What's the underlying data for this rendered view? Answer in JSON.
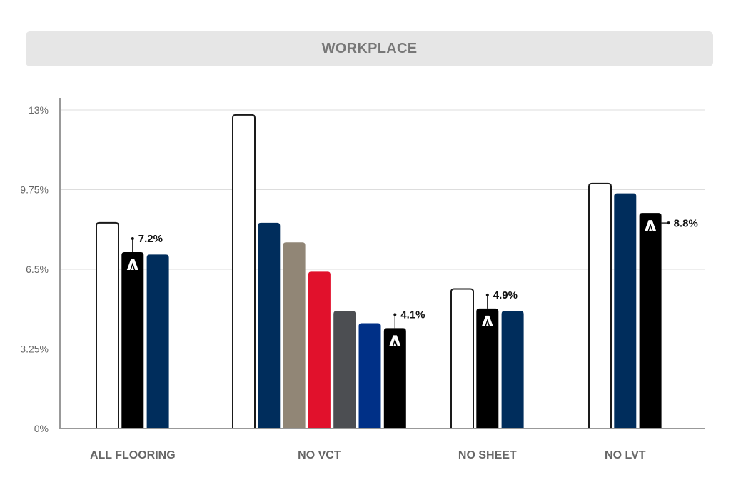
{
  "title": "WORKPLACE",
  "chart_data": {
    "type": "bar",
    "title": "WORKPLACE",
    "y_ticks": [
      "0%",
      "3.25%",
      "6.5%",
      "9.75%",
      "13%"
    ],
    "ylim": [
      0,
      13
    ],
    "grid": true,
    "groups": [
      {
        "category": "ALL FLOORING",
        "bars": [
          {
            "value": 8.4,
            "color": "#ffffff",
            "highlight": false
          },
          {
            "value": 7.2,
            "color": "#000000",
            "highlight": true,
            "label": "7.2%"
          },
          {
            "value": 7.1,
            "color": "#002d5c",
            "highlight": false
          }
        ]
      },
      {
        "category": "NO VCT",
        "bars": [
          {
            "value": 12.8,
            "color": "#ffffff",
            "highlight": false
          },
          {
            "value": 8.4,
            "color": "#002d5c",
            "highlight": false
          },
          {
            "value": 7.6,
            "color": "#918676",
            "highlight": false
          },
          {
            "value": 6.4,
            "color": "#e1112c",
            "highlight": false
          },
          {
            "value": 4.8,
            "color": "#4c4e52",
            "highlight": false
          },
          {
            "value": 4.3,
            "color": "#003087",
            "highlight": false
          },
          {
            "value": 4.1,
            "color": "#000000",
            "highlight": true,
            "label": "4.1%"
          }
        ]
      },
      {
        "category": "NO SHEET",
        "bars": [
          {
            "value": 5.7,
            "color": "#ffffff",
            "highlight": false
          },
          {
            "value": 4.9,
            "color": "#000000",
            "highlight": true,
            "label": "4.9%"
          },
          {
            "value": 4.8,
            "color": "#002d5c",
            "highlight": false
          }
        ]
      },
      {
        "category": "NO LVT",
        "bars": [
          {
            "value": 10.0,
            "color": "#ffffff",
            "highlight": false
          },
          {
            "value": 9.6,
            "color": "#002d5c",
            "highlight": false
          },
          {
            "value": 8.8,
            "color": "#000000",
            "highlight": true,
            "label": "8.8%"
          }
        ]
      }
    ]
  },
  "colors": {
    "axis": "#999999",
    "grid": "#dddddd",
    "bar_outline": "#1a1a1a",
    "title_bg": "#e6e6e6",
    "title_text": "#777777"
  },
  "icons": {
    "highlight_mark": "brand-a-logo-icon"
  }
}
